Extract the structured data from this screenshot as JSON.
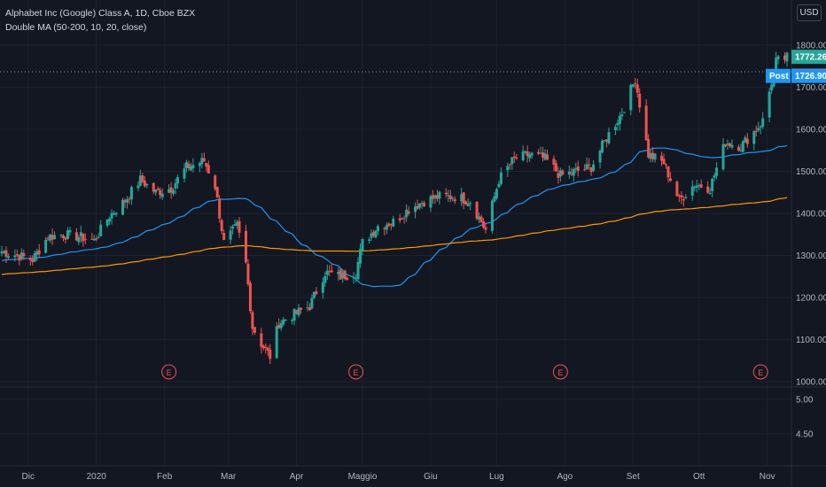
{
  "legend": {
    "symbol": "Alphabet Inc (Google) Class A, 1D, Cboe BZX",
    "indicator": "Double MA (50-200, 10, 20, close)"
  },
  "currency_button": "USD",
  "colors": {
    "background": "#131722",
    "up": "#26a69a",
    "down": "#ef5350",
    "ma50": "#2196f3",
    "ma200": "#ff9800",
    "grid": "#1e222d",
    "tag_green": "#26a69a",
    "tag_red": "#ef5350",
    "tag_blue": "#2196f3"
  },
  "chart_data": {
    "type": "candlestick",
    "x_ticks": [
      "Dic",
      "2020",
      "Feb",
      "Mar",
      "Apr",
      "Maggio",
      "Giu",
      "Lug",
      "Ago",
      "Set",
      "Ott",
      "Nov"
    ],
    "price_ticks": [
      "1800.00",
      "1700.00",
      "1600.00",
      "1500.00",
      "1400.00",
      "1300.00",
      "1200.00",
      "1100.00",
      "1000.00"
    ],
    "indicator_ticks": [
      "5.00",
      "4.50"
    ],
    "ylim": [
      990,
      1900
    ],
    "price_tags": [
      {
        "label": "",
        "value": "1772.26",
        "color": "green"
      },
      {
        "label": "",
        "value": "1727.56",
        "color": "red"
      },
      {
        "label": "Post",
        "value": "1726.90",
        "color": "blue"
      }
    ],
    "earnings_markers": [
      "E",
      "E",
      "E",
      "E"
    ],
    "anchors": [
      [
        "2019-11-19",
        1310
      ],
      [
        "2019-11-26",
        1300
      ],
      [
        "2019-12-03",
        1290
      ],
      [
        "2019-12-10",
        1345
      ],
      [
        "2019-12-17",
        1350
      ],
      [
        "2019-12-24",
        1345
      ],
      [
        "2019-12-31",
        1335
      ],
      [
        "2020-01-07",
        1395
      ],
      [
        "2020-01-14",
        1430
      ],
      [
        "2020-01-21",
        1480
      ],
      [
        "2020-01-28",
        1450
      ],
      [
        "2020-02-04",
        1460
      ],
      [
        "2020-02-11",
        1510
      ],
      [
        "2020-02-19",
        1525
      ],
      [
        "2020-02-24",
        1465
      ],
      [
        "2020-02-28",
        1330
      ],
      [
        "2020-03-05",
        1370
      ],
      [
        "2020-03-09",
        1280
      ],
      [
        "2020-03-12",
        1130
      ],
      [
        "2020-03-16",
        1090
      ],
      [
        "2020-03-20",
        1060
      ],
      [
        "2020-03-24",
        1140
      ],
      [
        "2020-03-31",
        1160
      ],
      [
        "2020-04-07",
        1180
      ],
      [
        "2020-04-14",
        1260
      ],
      [
        "2020-04-21",
        1250
      ],
      [
        "2020-04-28",
        1260
      ],
      [
        "2020-05-01",
        1330
      ],
      [
        "2020-05-08",
        1370
      ],
      [
        "2020-05-15",
        1380
      ],
      [
        "2020-05-22",
        1410
      ],
      [
        "2020-05-29",
        1430
      ],
      [
        "2020-06-05",
        1440
      ],
      [
        "2020-06-12",
        1440
      ],
      [
        "2020-06-19",
        1430
      ],
      [
        "2020-06-26",
        1360
      ],
      [
        "2020-07-02",
        1480
      ],
      [
        "2020-07-09",
        1530
      ],
      [
        "2020-07-16",
        1540
      ],
      [
        "2020-07-23",
        1530
      ],
      [
        "2020-07-30",
        1490
      ],
      [
        "2020-08-06",
        1500
      ],
      [
        "2020-08-13",
        1510
      ],
      [
        "2020-08-20",
        1580
      ],
      [
        "2020-08-27",
        1640
      ],
      [
        "2020-09-02",
        1720
      ],
      [
        "2020-09-08",
        1540
      ],
      [
        "2020-09-15",
        1520
      ],
      [
        "2020-09-22",
        1430
      ],
      [
        "2020-09-29",
        1470
      ],
      [
        "2020-10-06",
        1460
      ],
      [
        "2020-10-13",
        1570
      ],
      [
        "2020-10-20",
        1560
      ],
      [
        "2020-10-27",
        1600
      ],
      [
        "2020-10-30",
        1620
      ],
      [
        "2020-11-05",
        1760
      ],
      [
        "2020-11-10",
        1770
      ]
    ],
    "moving_averages": [
      {
        "name": "MA 50",
        "color_key": "ma50",
        "period": 50
      },
      {
        "name": "MA 200",
        "color_key": "ma200",
        "period": 200
      }
    ]
  }
}
